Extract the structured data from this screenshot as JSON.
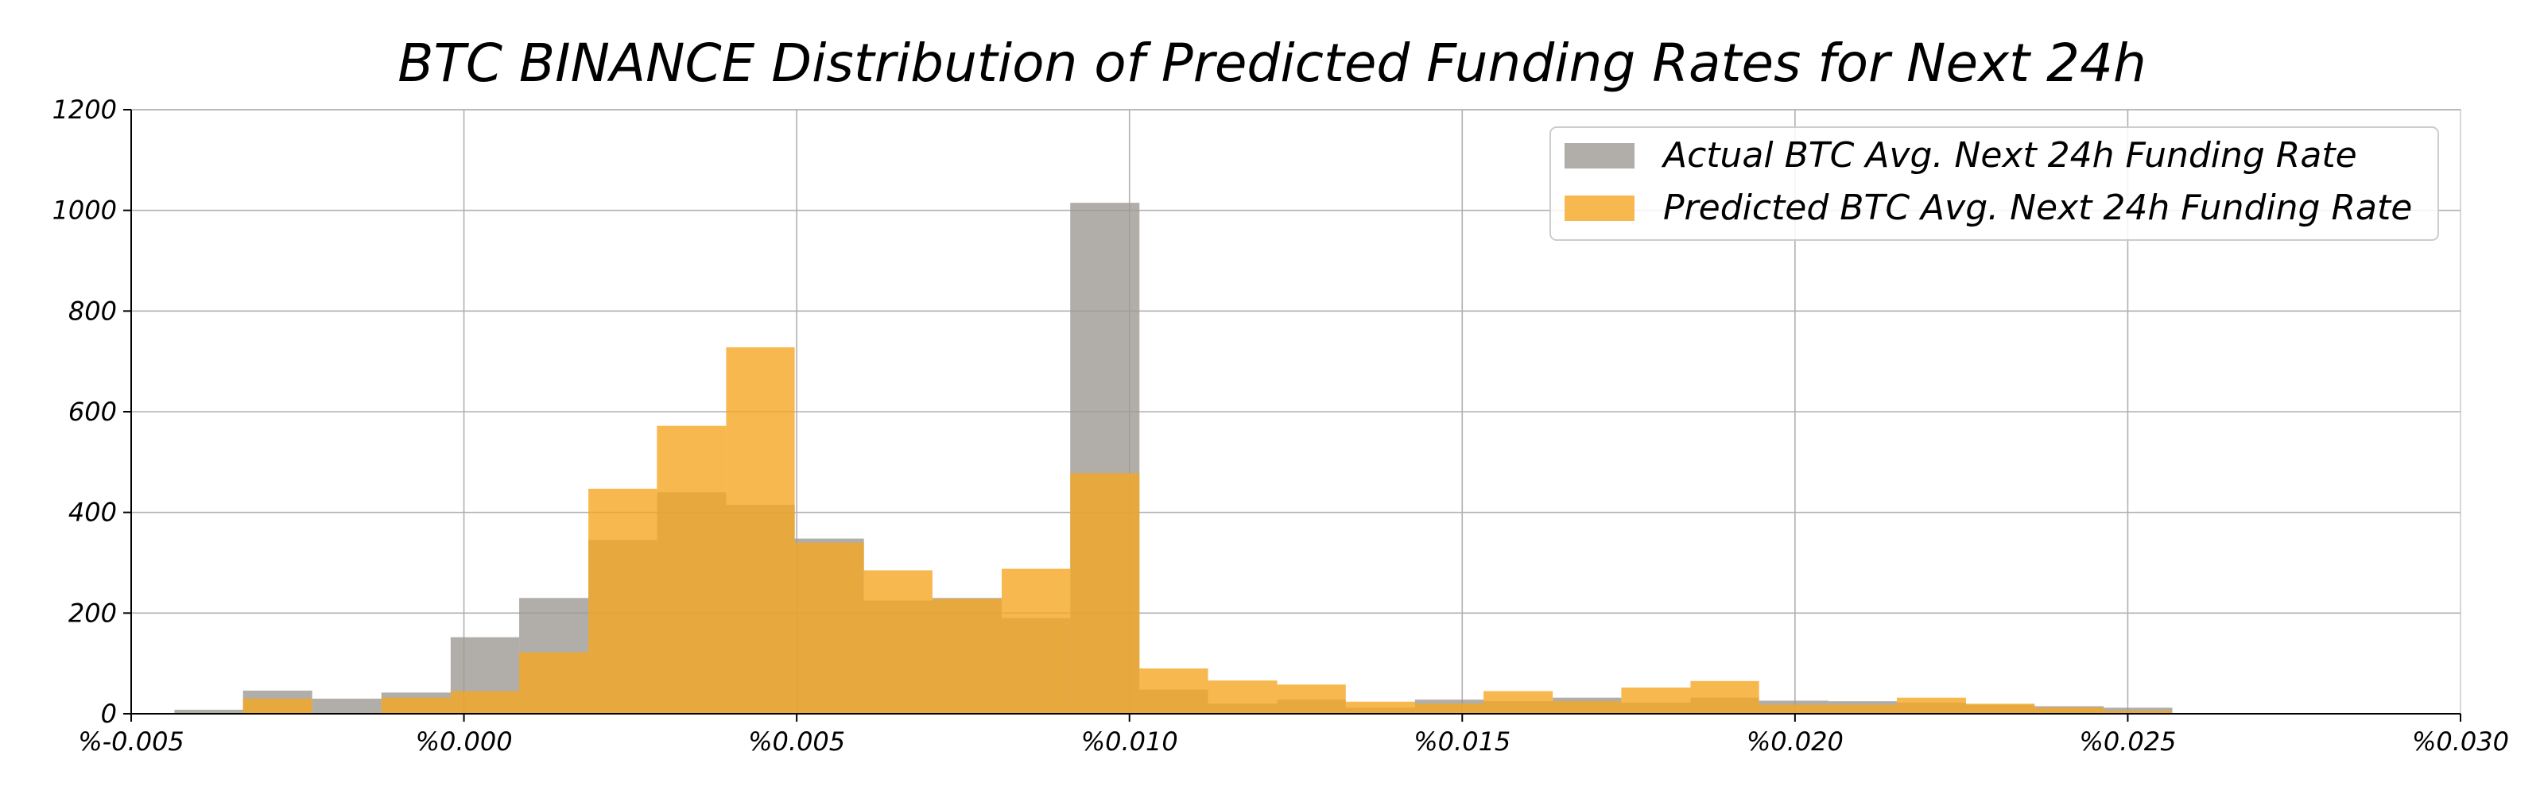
{
  "chart_data": {
    "type": "bar",
    "title": "BTC BINANCE Distribution of Predicted Funding Rates for Next 24h",
    "xlabel": "",
    "ylabel": "",
    "xlim": [
      -0.005,
      0.03
    ],
    "ylim": [
      0,
      1200
    ],
    "grid": true,
    "legend_placement": "top-right",
    "x_ticks": [
      -0.005,
      0.0,
      0.005,
      0.01,
      0.015,
      0.02,
      0.025,
      0.03
    ],
    "x_tick_labels": [
      "%-0.005",
      "%0.000",
      "%0.005",
      "%0.010",
      "%0.015",
      "%0.020",
      "%0.025",
      "%0.030"
    ],
    "y_ticks": [
      0,
      200,
      400,
      600,
      800,
      1000,
      1200
    ],
    "y_tick_labels": [
      "0",
      "200",
      "400",
      "600",
      "800",
      "1000",
      "1200"
    ],
    "series": [
      {
        "name": "Actual BTC Avg. Next 24h Funding Rate",
        "color": "#9e9893",
        "bins": [
          {
            "x0": -0.00435,
            "x1": -0.00332,
            "value": 8
          },
          {
            "x0": -0.00332,
            "x1": -0.00228,
            "value": 46
          },
          {
            "x0": -0.00228,
            "x1": -0.00124,
            "value": 30
          },
          {
            "x0": -0.00124,
            "x1": -0.0002,
            "value": 42
          },
          {
            "x0": -0.0002,
            "x1": 0.00083,
            "value": 152
          },
          {
            "x0": 0.00083,
            "x1": 0.00187,
            "value": 230
          },
          {
            "x0": 0.00187,
            "x1": 0.0029,
            "value": 345
          },
          {
            "x0": 0.0029,
            "x1": 0.00394,
            "value": 440
          },
          {
            "x0": 0.00394,
            "x1": 0.00497,
            "value": 415
          },
          {
            "x0": 0.00497,
            "x1": 0.00601,
            "value": 348
          },
          {
            "x0": 0.00601,
            "x1": 0.00704,
            "value": 225
          },
          {
            "x0": 0.00704,
            "x1": 0.00808,
            "value": 230
          },
          {
            "x0": 0.00808,
            "x1": 0.00911,
            "value": 190
          },
          {
            "x0": 0.00911,
            "x1": 0.01015,
            "value": 1015
          },
          {
            "x0": 0.01015,
            "x1": 0.01118,
            "value": 48
          },
          {
            "x0": 0.01118,
            "x1": 0.01222,
            "value": 20
          },
          {
            "x0": 0.01222,
            "x1": 0.01325,
            "value": 28
          },
          {
            "x0": 0.01325,
            "x1": 0.01429,
            "value": 12
          },
          {
            "x0": 0.01429,
            "x1": 0.01532,
            "value": 28
          },
          {
            "x0": 0.01532,
            "x1": 0.01636,
            "value": 25
          },
          {
            "x0": 0.01636,
            "x1": 0.01739,
            "value": 32
          },
          {
            "x0": 0.01739,
            "x1": 0.01843,
            "value": 22
          },
          {
            "x0": 0.01843,
            "x1": 0.01946,
            "value": 32
          },
          {
            "x0": 0.01946,
            "x1": 0.0205,
            "value": 26
          },
          {
            "x0": 0.0205,
            "x1": 0.02153,
            "value": 25
          },
          {
            "x0": 0.02153,
            "x1": 0.02257,
            "value": 22
          },
          {
            "x0": 0.02257,
            "x1": 0.0236,
            "value": 18
          },
          {
            "x0": 0.0236,
            "x1": 0.02464,
            "value": 15
          },
          {
            "x0": 0.02464,
            "x1": 0.02567,
            "value": 12
          }
        ]
      },
      {
        "name": "Predicted BTC Avg. Next 24h Funding Rate",
        "color": "#f5a623",
        "bins": [
          {
            "x0": -0.00332,
            "x1": -0.00228,
            "value": 30
          },
          {
            "x0": -0.00228,
            "x1": -0.00124,
            "value": 0
          },
          {
            "x0": -0.00124,
            "x1": -0.0002,
            "value": 32
          },
          {
            "x0": -0.0002,
            "x1": 0.00083,
            "value": 45
          },
          {
            "x0": 0.00083,
            "x1": 0.00187,
            "value": 122
          },
          {
            "x0": 0.00187,
            "x1": 0.0029,
            "value": 447
          },
          {
            "x0": 0.0029,
            "x1": 0.00394,
            "value": 572
          },
          {
            "x0": 0.00394,
            "x1": 0.00497,
            "value": 728
          },
          {
            "x0": 0.00497,
            "x1": 0.00601,
            "value": 340
          },
          {
            "x0": 0.00601,
            "x1": 0.00704,
            "value": 285
          },
          {
            "x0": 0.00704,
            "x1": 0.00808,
            "value": 228
          },
          {
            "x0": 0.00808,
            "x1": 0.00911,
            "value": 288
          },
          {
            "x0": 0.00911,
            "x1": 0.01015,
            "value": 478
          },
          {
            "x0": 0.01015,
            "x1": 0.01118,
            "value": 90
          },
          {
            "x0": 0.01118,
            "x1": 0.01222,
            "value": 66
          },
          {
            "x0": 0.01222,
            "x1": 0.01325,
            "value": 58
          },
          {
            "x0": 0.01325,
            "x1": 0.01429,
            "value": 24
          },
          {
            "x0": 0.01429,
            "x1": 0.01532,
            "value": 20
          },
          {
            "x0": 0.01532,
            "x1": 0.01636,
            "value": 45
          },
          {
            "x0": 0.01636,
            "x1": 0.01739,
            "value": 25
          },
          {
            "x0": 0.01739,
            "x1": 0.01843,
            "value": 52
          },
          {
            "x0": 0.01843,
            "x1": 0.01946,
            "value": 65
          },
          {
            "x0": 0.01946,
            "x1": 0.0205,
            "value": 18
          },
          {
            "x0": 0.0205,
            "x1": 0.02153,
            "value": 18
          },
          {
            "x0": 0.02153,
            "x1": 0.02257,
            "value": 32
          },
          {
            "x0": 0.02257,
            "x1": 0.0236,
            "value": 20
          },
          {
            "x0": 0.0236,
            "x1": 0.02464,
            "value": 12
          },
          {
            "x0": 0.02464,
            "x1": 0.02567,
            "value": 6
          }
        ]
      }
    ]
  }
}
